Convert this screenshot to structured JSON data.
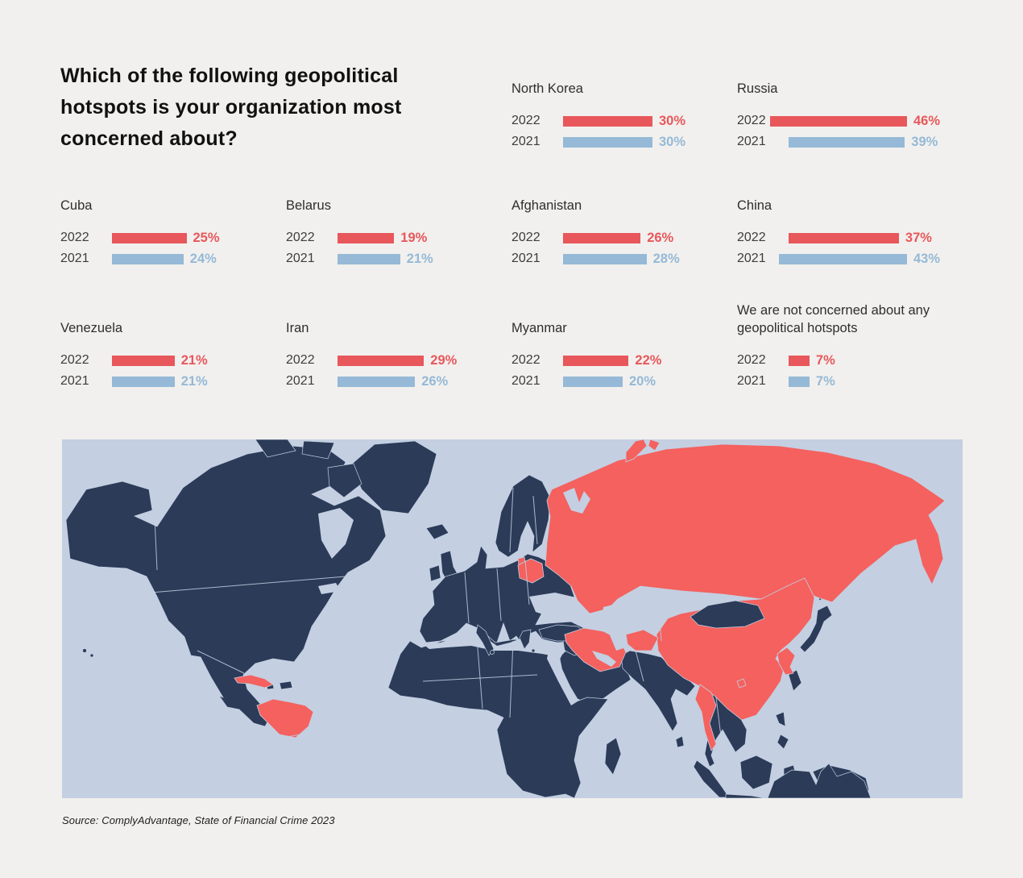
{
  "title": "Which of the following geopolitical hotspots is your organization most concerned about?",
  "source": "Source: ComplyAdvantage, State of Financial Crime 2023",
  "colors": {
    "page_bg": "#f1f0ee",
    "bar_red": "#e8575b",
    "bar_blue": "#95b9d6",
    "title_text": "#111111",
    "label_text": "#2e2e2e",
    "year_text": "#3d3d3d",
    "map_ocean": "#c4cfe2",
    "map_land": "#2b3b58",
    "map_red": "#f4615e",
    "map_border": "#c4cfe2"
  },
  "chart_data": {
    "type": "bar",
    "title": "Which of the following geopolitical hotspots is your organization most concerned about?",
    "series": [
      "2022",
      "2021"
    ],
    "unit": "%",
    "xlim": [
      0,
      50
    ],
    "grid": false,
    "legend_position": "none (years labeled per bar)",
    "groups": [
      {
        "label": "North Korea",
        "values": {
          "2022": 30,
          "2021": 30
        }
      },
      {
        "label": "Russia",
        "values": {
          "2022": 46,
          "2021": 39
        }
      },
      {
        "label": "Cuba",
        "values": {
          "2022": 25,
          "2021": 24
        }
      },
      {
        "label": "Belarus",
        "values": {
          "2022": 19,
          "2021": 21
        }
      },
      {
        "label": "Afghanistan",
        "values": {
          "2022": 26,
          "2021": 28
        }
      },
      {
        "label": "China",
        "values": {
          "2022": 37,
          "2021": 43
        }
      },
      {
        "label": "Venezuela",
        "values": {
          "2022": 21,
          "2021": 21
        }
      },
      {
        "label": "Iran",
        "values": {
          "2022": 29,
          "2021": 26
        }
      },
      {
        "label": "Myanmar",
        "values": {
          "2022": 22,
          "2021": 20
        }
      },
      {
        "label": "We are not concerned about any geopolitical hotspots",
        "values": {
          "2022": 7,
          "2021": 7
        }
      }
    ],
    "map": {
      "type": "world-choropleth-highlight",
      "highlighted_countries": [
        "Russia",
        "Belarus",
        "Iran",
        "Afghanistan",
        "China",
        "North Korea",
        "Myanmar",
        "Cuba",
        "Venezuela"
      ]
    }
  }
}
